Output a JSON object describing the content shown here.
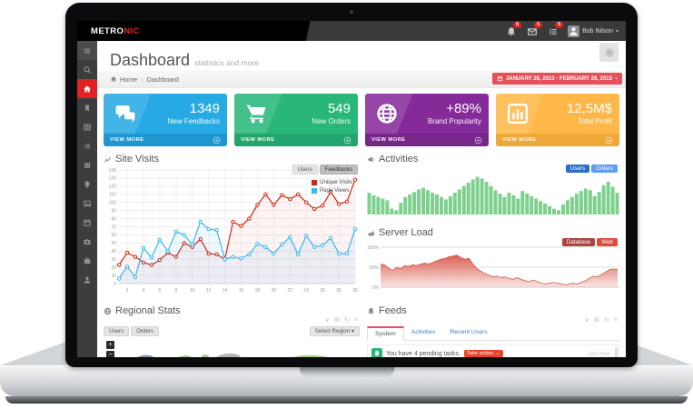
{
  "topbar": {
    "logo": {
      "part1": "METRO",
      "part2": "NIC"
    },
    "notifications": [
      {
        "icon": "bell-icon",
        "count": "6"
      },
      {
        "icon": "envelope-icon",
        "count": "5"
      },
      {
        "icon": "tasks-icon",
        "count": "5"
      }
    ],
    "user": {
      "name": "Bob Nilson"
    }
  },
  "sidebar": {
    "items": [
      {
        "name": "menu-toggle",
        "icon": "hamburger-icon",
        "active": false,
        "toggle": true
      },
      {
        "name": "search",
        "icon": "search-icon",
        "active": false,
        "toggle": false
      },
      {
        "name": "dashboard",
        "icon": "home-icon",
        "active": true,
        "toggle": false
      },
      {
        "name": "bookmarks",
        "icon": "bookmark-icon",
        "active": false,
        "toggle": false
      },
      {
        "name": "tables",
        "icon": "table-icon",
        "active": false,
        "toggle": false
      },
      {
        "name": "lists",
        "icon": "list-icon",
        "active": false,
        "toggle": false
      },
      {
        "name": "columns",
        "icon": "columns-icon",
        "active": false,
        "toggle": false
      },
      {
        "name": "locations",
        "icon": "pin-icon",
        "active": false,
        "toggle": false
      },
      {
        "name": "media",
        "icon": "image-icon",
        "active": false,
        "toggle": false
      },
      {
        "name": "calendar",
        "icon": "calendar-icon",
        "active": false,
        "toggle": false
      },
      {
        "name": "camera",
        "icon": "camera-icon",
        "active": false,
        "toggle": false
      },
      {
        "name": "projects",
        "icon": "briefcase-icon",
        "active": false,
        "toggle": false
      },
      {
        "name": "profile",
        "icon": "user-icon",
        "active": false,
        "toggle": false
      }
    ]
  },
  "page": {
    "title": "Dashboard",
    "subtitle": "statistics and more"
  },
  "breadcrumb": {
    "home": "Home",
    "current": "Dashboard"
  },
  "daterange": {
    "label": "JANUARY 28, 2013 - FEBRUARY 26, 2013"
  },
  "stats": [
    {
      "value": "1349",
      "label": "New Feedbacks",
      "action": "VIEW MORE",
      "icon": "comments-icon",
      "bg": "#27a9e3",
      "footer_bg": "#2095cd"
    },
    {
      "value": "549",
      "label": "New Orders",
      "action": "VIEW MORE",
      "icon": "cart-icon",
      "bg": "#28b779",
      "footer_bg": "#23a36c"
    },
    {
      "value": "+89%",
      "label": "Brand Popularity",
      "action": "VIEW MORE",
      "icon": "globe-icon",
      "bg": "#852b99",
      "footer_bg": "#762688"
    },
    {
      "value": "12,5M$",
      "label": "Total Profit",
      "action": "VIEW MORE",
      "icon": "bar-chart-icon",
      "bg": "#ffb848",
      "footer_bg": "#efa838"
    }
  ],
  "site_visits": {
    "title": "Site Visits",
    "icon": "line-chart-icon",
    "buttons": [
      {
        "label": "Users",
        "active": false
      },
      {
        "label": "Feedbacks",
        "active": true
      }
    ],
    "legend": [
      {
        "label": "Unique Visits",
        "color": "#d12610"
      },
      {
        "label": "Page Views",
        "color": "#37b7f3"
      }
    ]
  },
  "activities": {
    "title": "Activities",
    "icon": "megaphone-icon",
    "buttons": [
      {
        "label": "Users",
        "color": "#2a6fc4"
      },
      {
        "label": "Orders",
        "color": "#5e9cf1"
      }
    ]
  },
  "server_load": {
    "title": "Server Load",
    "icon": "area-chart-icon",
    "buttons": [
      {
        "label": "Database",
        "color": "#a94442"
      },
      {
        "label": "Web",
        "color": "#d84e3f"
      }
    ],
    "y_labels": [
      "100%",
      "50%",
      "0%"
    ]
  },
  "regional_stats": {
    "title": "Regional Stats",
    "icon": "globe-icon",
    "buttons": [
      {
        "label": "Users"
      },
      {
        "label": "Orders"
      }
    ],
    "select": "Select Region",
    "select_caret": "▾",
    "zoom_in": "+",
    "zoom_out": "−"
  },
  "feeds": {
    "title": "Feeds",
    "icon": "bell-icon",
    "tabs": [
      {
        "label": "System",
        "active": true
      },
      {
        "label": "Activities",
        "active": false
      },
      {
        "label": "Recent Users",
        "active": false
      }
    ],
    "items": [
      {
        "icon": "bell-icon",
        "text": "You have 4 pending tasks.",
        "action": "Take action →",
        "time": "Just now"
      }
    ]
  },
  "tools": [
    {
      "name": "collapse-icon",
      "glyph": "∨"
    },
    {
      "name": "config-icon",
      "glyph": "⚙"
    },
    {
      "name": "reload-icon",
      "glyph": "↻"
    },
    {
      "name": "close-icon",
      "glyph": "×"
    }
  ],
  "chart_data": [
    {
      "type": "line",
      "title": "Site Visits",
      "x": [
        1,
        2,
        3,
        4,
        5,
        6,
        7,
        8,
        9,
        10,
        11,
        12,
        13,
        14,
        15,
        16,
        17,
        18,
        19,
        20,
        21,
        22,
        23,
        24,
        25,
        26,
        27,
        28,
        29,
        30
      ],
      "x_ticks": [
        2,
        4,
        6,
        8,
        10,
        12,
        14,
        16,
        18,
        20,
        22,
        24,
        26,
        28,
        30
      ],
      "ylim": [
        0,
        140
      ],
      "y_step": 10,
      "grid": true,
      "legend_position": "top-right",
      "series": [
        {
          "name": "Unique Visits",
          "color": "#d12610",
          "values": [
            23,
            38,
            33,
            26,
            23,
            29,
            38,
            33,
            50,
            45,
            55,
            37,
            36,
            30,
            76,
            71,
            80,
            97,
            110,
            97,
            109,
            104,
            110,
            100,
            92,
            96,
            113,
            98,
            101,
            128
          ]
        },
        {
          "name": "Page Views",
          "color": "#37b7f3",
          "values": [
            6,
            21,
            8,
            44,
            32,
            54,
            40,
            64,
            60,
            48,
            76,
            67,
            66,
            30,
            33,
            31,
            36,
            49,
            45,
            37,
            48,
            57,
            36,
            59,
            45,
            47,
            56,
            37,
            37,
            67
          ]
        }
      ]
    },
    {
      "type": "bar",
      "title": "Activities",
      "color": "#7ed08d",
      "ylim": [
        0,
        100
      ],
      "values": [
        52,
        46,
        42,
        38,
        34,
        14,
        10,
        28,
        42,
        48,
        54,
        60,
        64,
        58,
        52,
        48,
        42,
        36,
        44,
        52,
        60,
        68,
        76,
        84,
        90,
        86,
        78,
        68,
        58,
        50,
        42,
        52,
        46,
        38,
        56,
        50,
        44,
        38,
        32,
        26,
        20,
        14,
        10,
        24,
        34,
        42,
        50,
        56,
        62,
        58,
        44,
        54,
        70,
        78,
        66,
        52
      ]
    },
    {
      "type": "area",
      "title": "Server Load",
      "color": "#d9594a",
      "ylim": [
        0,
        100
      ],
      "y_ticks": [
        "0%",
        "50%",
        "100%"
      ],
      "values": [
        58,
        56,
        48,
        42,
        50,
        46,
        54,
        52,
        56,
        54,
        58,
        60,
        58,
        62,
        66,
        70,
        72,
        76,
        78,
        80,
        74,
        70,
        72,
        58,
        46,
        40,
        34,
        30,
        26,
        28,
        24,
        26,
        22,
        20,
        24,
        20,
        16,
        14,
        18,
        14,
        10,
        8,
        10,
        12,
        10,
        8,
        6,
        8,
        10,
        8,
        12,
        16,
        22,
        28,
        26,
        32,
        38,
        44,
        46,
        44
      ]
    }
  ]
}
